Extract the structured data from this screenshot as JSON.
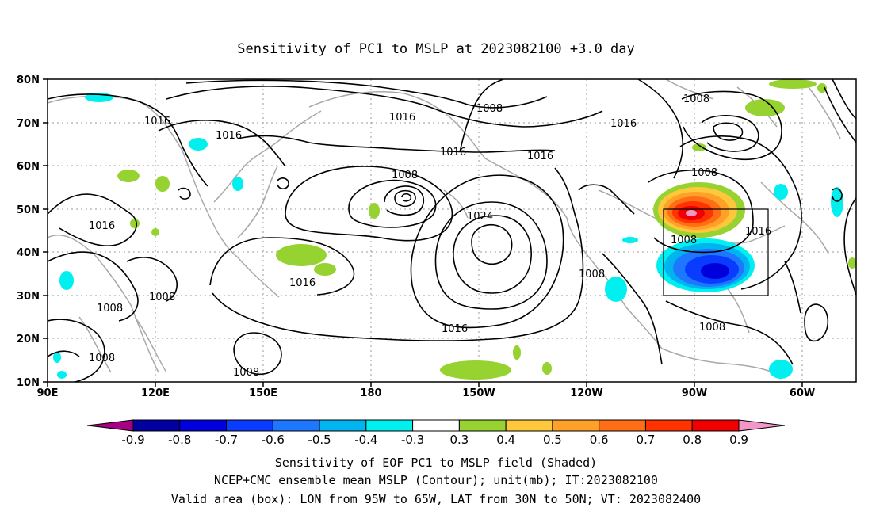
{
  "title": "Sensitivity of PC1 to MSLP at 2023082100 +3.0 day",
  "axes": {
    "x_ticks": [
      "90E",
      "120E",
      "150E",
      "180",
      "150W",
      "120W",
      "90W",
      "60W"
    ],
    "y_ticks": [
      "80N",
      "70N",
      "60N",
      "50N",
      "40N",
      "30N",
      "20N",
      "10N"
    ]
  },
  "contour_labels": [
    "1016",
    "1016",
    "1008",
    "1016",
    "1016",
    "1016",
    "1008",
    "1016",
    "1008",
    "1024",
    "1016",
    "1016",
    "1008",
    "1008",
    "1008",
    "1008",
    "1016",
    "1008",
    "1016",
    "1008",
    "1008",
    "1008"
  ],
  "colorbar": {
    "tick_labels": [
      "-0.9",
      "-0.8",
      "-0.7",
      "-0.6",
      "-0.5",
      "-0.4",
      "-0.3",
      "0.3",
      "0.4",
      "0.5",
      "0.6",
      "0.7",
      "0.8",
      "0.9"
    ],
    "colors": [
      "#a80084",
      "#0000a0",
      "#0000dc",
      "#0a3cff",
      "#1e78ff",
      "#00b4f0",
      "#00f0f0",
      "#ffffff",
      "#96d230",
      "#ffc83c",
      "#ffa028",
      "#ff6e14",
      "#ff3200",
      "#f00000",
      "#f596c8"
    ]
  },
  "captions": [
    "Sensitivity of EOF PC1 to MSLP field (Shaded)",
    "NCEP+CMC ensemble mean MSLP (Contour); unit(mb); IT:2023082100",
    "Valid area (box): LON from 95W to 65W, LAT from 30N to 50N; VT: 2023082400"
  ],
  "valid_box": {
    "lon": [
      "95W",
      "65W"
    ],
    "lat": [
      "30N",
      "50N"
    ]
  }
}
